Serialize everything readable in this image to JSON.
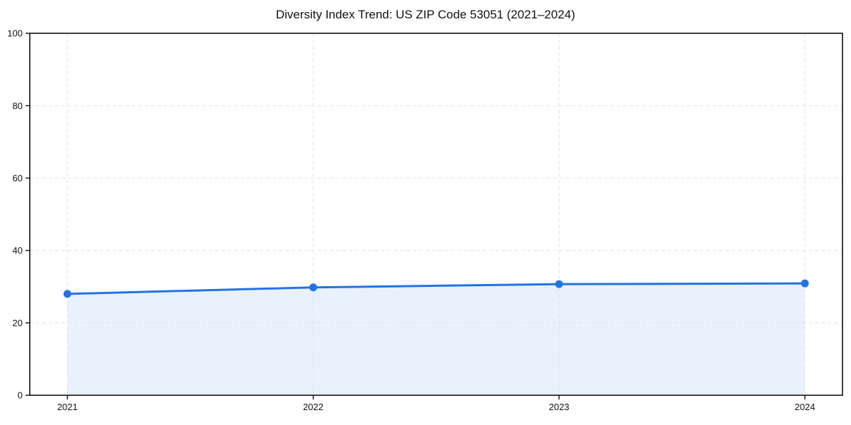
{
  "chart_data": {
    "type": "line",
    "title": "Diversity Index Trend: US ZIP Code 53051 (2021–2024)",
    "x": [
      2021,
      2022,
      2023,
      2024
    ],
    "x_tick_labels": [
      "2021",
      "2022",
      "2023",
      "2024"
    ],
    "series": [
      {
        "name": "Diversity Index",
        "values": [
          28.0,
          29.8,
          30.7,
          30.9
        ]
      }
    ],
    "xlabel": "",
    "ylabel": "",
    "ylim": [
      0,
      100
    ],
    "yticks": [
      0,
      20,
      40,
      60,
      80,
      100
    ],
    "grid": "horizontal and vertical dashed gridlines at ticks",
    "legend_position": "none",
    "area_fill_under_line": true,
    "colors": {
      "line": "#2273e3",
      "marker": "#2273e3",
      "area": "#e9f1fc",
      "grid": "#e3e3e3",
      "spine": "#111111",
      "text": "#111111",
      "background": "#ffffff"
    }
  }
}
